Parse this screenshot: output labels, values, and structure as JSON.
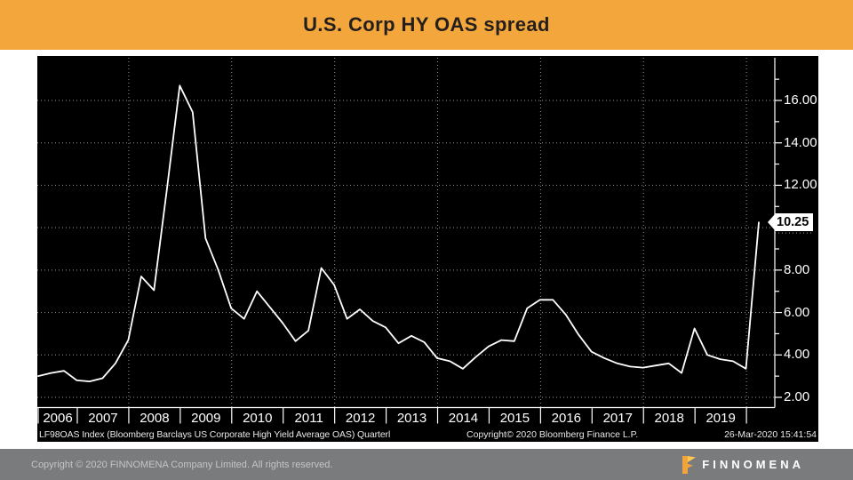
{
  "header": {
    "title": "U.S. Corp HY OAS spread",
    "background_color": "#F3A63C"
  },
  "chart_footer": {
    "source": "LF98OAS Index (Bloomberg Barclays US Corporate High Yield Average OAS)  Quarterl",
    "copyright": "Copyright© 2020 Bloomberg Finance L.P.",
    "timestamp": "26-Mar-2020 15:41:54"
  },
  "page_footer": {
    "copyright": "Copyright © 2020 FINNOMENA Company Limited. All rights reserved.",
    "logo_text": "FINNOMENA",
    "logo_color": "#F5A82D"
  },
  "chart_data": {
    "type": "line",
    "title": "U.S. Corp HY OAS spread",
    "series_name": "LF98OAS Index (Bloomberg Barclays US Corporate High Yield Average OAS)",
    "frequency": "Quarterly",
    "x": [
      "2006 Q1",
      "2006 Q2",
      "2006 Q3",
      "2006 Q4",
      "2007 Q1",
      "2007 Q2",
      "2007 Q3",
      "2007 Q4",
      "2008 Q1",
      "2008 Q2",
      "2008 Q3",
      "2008 Q4",
      "2009 Q1",
      "2009 Q2",
      "2009 Q3",
      "2009 Q4",
      "2010 Q1",
      "2010 Q2",
      "2010 Q3",
      "2010 Q4",
      "2011 Q1",
      "2011 Q2",
      "2011 Q3",
      "2011 Q4",
      "2012 Q1",
      "2012 Q2",
      "2012 Q3",
      "2012 Q4",
      "2013 Q1",
      "2013 Q2",
      "2013 Q3",
      "2013 Q4",
      "2014 Q1",
      "2014 Q2",
      "2014 Q3",
      "2014 Q4",
      "2015 Q1",
      "2015 Q2",
      "2015 Q3",
      "2015 Q4",
      "2016 Q1",
      "2016 Q2",
      "2016 Q3",
      "2016 Q4",
      "2017 Q1",
      "2017 Q2",
      "2017 Q3",
      "2017 Q4",
      "2018 Q1",
      "2018 Q2",
      "2018 Q3",
      "2018 Q4",
      "2019 Q1",
      "2019 Q2",
      "2019 Q3",
      "2019 Q4",
      "26-Mar-2020"
    ],
    "values": [
      3.0,
      3.15,
      3.25,
      2.8,
      2.75,
      2.9,
      3.6,
      4.7,
      7.7,
      7.05,
      11.8,
      16.7,
      15.45,
      9.5,
      8.0,
      6.2,
      5.7,
      7.0,
      6.25,
      5.5,
      4.65,
      5.15,
      8.1,
      7.3,
      5.7,
      6.15,
      5.6,
      5.3,
      4.55,
      4.9,
      4.6,
      3.85,
      3.7,
      3.35,
      3.9,
      4.4,
      4.7,
      4.65,
      6.2,
      6.6,
      6.6,
      5.9,
      4.95,
      4.15,
      3.85,
      3.6,
      3.45,
      3.4,
      3.5,
      3.6,
      3.15,
      5.25,
      4.0,
      3.8,
      3.7,
      3.35,
      10.25
    ],
    "last_value": 10.25,
    "last_value_label": "10.25",
    "x_axis_years": [
      "2006",
      "2007",
      "2008",
      "2009",
      "2010",
      "2011",
      "2012",
      "2013",
      "2014",
      "2015",
      "2016",
      "2017",
      "2018",
      "2019"
    ],
    "x_gridline_years": [
      2008,
      2010,
      2012,
      2014,
      2016,
      2018,
      2020
    ],
    "y_axis": {
      "labeled_ticks": [
        {
          "value": 16,
          "label": "16.00"
        },
        {
          "value": 14,
          "label": "14.00"
        },
        {
          "value": 12,
          "label": "12.00"
        },
        {
          "value": 8,
          "label": "8.00"
        },
        {
          "value": 6,
          "label": "6.00"
        },
        {
          "value": 4,
          "label": "4.00"
        },
        {
          "value": 2,
          "label": "2.00"
        }
      ],
      "minor_tick_values": [
        17,
        15,
        13,
        11,
        9,
        7,
        5,
        3
      ],
      "gridline_values": [
        16,
        14,
        12,
        10,
        8,
        6,
        4,
        2
      ]
    },
    "ylim_displayed": [
      1.5,
      18.1
    ],
    "grid": "dotted",
    "legend": "none",
    "colors": {
      "line": "#ffffff",
      "background": "#000000",
      "grid": "#9a9a9a",
      "axis": "#ffffff"
    }
  }
}
